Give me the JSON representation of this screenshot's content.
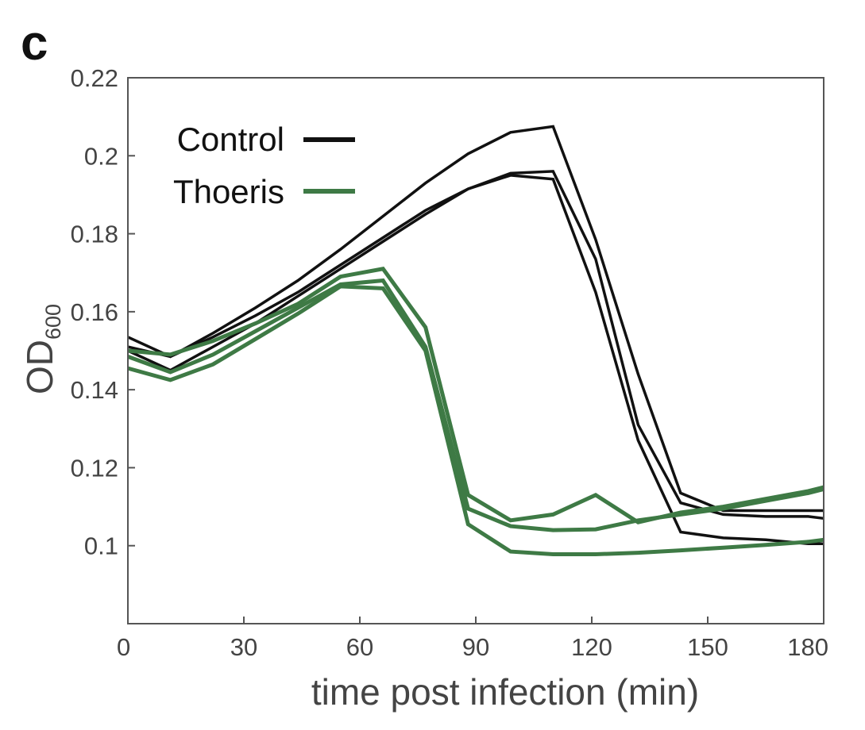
{
  "panel_label": "c",
  "chart_data": {
    "type": "line",
    "title": "",
    "xlabel": "time post infection (min)",
    "ylabel_main": "OD",
    "ylabel_subscript": "600",
    "xlim": [
      0,
      180
    ],
    "ylim": [
      0.08,
      0.22
    ],
    "xticks": [
      0,
      30,
      60,
      90,
      120,
      150,
      180
    ],
    "xtick_labels": [
      "0",
      "30",
      "60",
      "90",
      "120",
      "150",
      "180"
    ],
    "yticks": [
      0.1,
      0.12,
      0.14,
      0.16,
      0.18,
      0.2,
      0.22
    ],
    "ytick_labels": [
      "0.1",
      "0.12",
      "0.14",
      "0.16",
      "0.18",
      "0.2",
      "0.22"
    ],
    "grid": false,
    "legend_position": "top-left",
    "legend": [
      {
        "label": "Control",
        "color": "#111111"
      },
      {
        "label": "Thoeris",
        "color": "#3e7a45"
      }
    ],
    "x": [
      0,
      11,
      22,
      33,
      44,
      55,
      66,
      77,
      88,
      99,
      110,
      121,
      132,
      143,
      154,
      165,
      176,
      180
    ],
    "series": [
      {
        "group": "Control",
        "color": "#111111",
        "values": [
          0.1535,
          0.1485,
          0.1545,
          0.161,
          0.168,
          0.176,
          0.1845,
          0.193,
          0.2005,
          0.206,
          0.2075,
          0.1785,
          0.144,
          0.1135,
          0.109,
          0.109,
          0.109,
          0.109
        ]
      },
      {
        "group": "Control",
        "color": "#111111",
        "values": [
          0.151,
          0.1485,
          0.1535,
          0.159,
          0.165,
          0.172,
          0.179,
          0.186,
          0.1915,
          0.1955,
          0.196,
          0.1735,
          0.131,
          0.111,
          0.108,
          0.1075,
          0.1075,
          0.107
        ]
      },
      {
        "group": "Control",
        "color": "#111111",
        "values": [
          0.15,
          0.145,
          0.151,
          0.157,
          0.164,
          0.171,
          0.178,
          0.185,
          0.1915,
          0.195,
          0.194,
          0.165,
          0.127,
          0.1035,
          0.102,
          0.1015,
          0.1005,
          0.1005
        ]
      },
      {
        "group": "Thoeris",
        "color": "#3e7a45",
        "values": [
          0.15,
          0.149,
          0.1525,
          0.157,
          0.162,
          0.169,
          0.171,
          0.156,
          0.113,
          0.1065,
          0.108,
          0.113,
          0.106,
          0.1085,
          0.11,
          0.112,
          0.114,
          0.115
        ]
      },
      {
        "group": "Thoeris",
        "color": "#3e7a45",
        "values": [
          0.1485,
          0.1445,
          0.149,
          0.155,
          0.161,
          0.167,
          0.168,
          0.151,
          0.1095,
          0.105,
          0.104,
          0.1042,
          0.1065,
          0.108,
          0.1095,
          0.1115,
          0.1135,
          0.1145
        ]
      },
      {
        "group": "Thoeris",
        "color": "#3e7a45",
        "values": [
          0.1455,
          0.1425,
          0.1465,
          0.153,
          0.1595,
          0.1665,
          0.166,
          0.15,
          0.1055,
          0.0985,
          0.0978,
          0.0978,
          0.0982,
          0.0988,
          0.0995,
          0.1002,
          0.101,
          0.1015
        ]
      }
    ]
  }
}
